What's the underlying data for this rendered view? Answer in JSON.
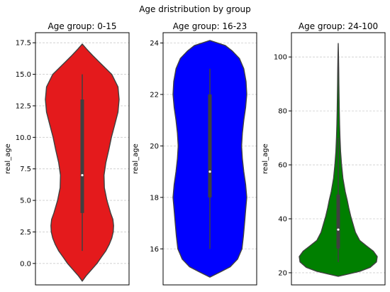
{
  "suptitle": "Age dristribution by group",
  "colors": {
    "grid": "#cccccc",
    "edge": "#3f3f3f",
    "box": "#3f3f3f",
    "median": "#ffffff"
  },
  "chart_data": [
    {
      "type": "violin",
      "title": "Age group: 0-15",
      "xlabel": "",
      "ylabel": "real_age",
      "ylim": [
        -1.7,
        18.3
      ],
      "yticks": [
        0.0,
        2.5,
        5.0,
        7.5,
        10.0,
        12.5,
        15.0,
        17.5
      ],
      "ytick_labels": [
        "0.0",
        "2.5",
        "5.0",
        "7.5",
        "10.0",
        "12.5",
        "15.0",
        "17.5"
      ],
      "grid": true,
      "color": "#e41a1c",
      "box": {
        "min": 1,
        "q1": 4,
        "median": 7,
        "q3": 13,
        "max": 15
      },
      "density": [
        [
          -1.4,
          0.0
        ],
        [
          -1.0,
          0.1
        ],
        [
          -0.5,
          0.25
        ],
        [
          0.0,
          0.4
        ],
        [
          0.5,
          0.52
        ],
        [
          1.0,
          0.64
        ],
        [
          1.5,
          0.73
        ],
        [
          2.0,
          0.8
        ],
        [
          2.5,
          0.84
        ],
        [
          3.0,
          0.85
        ],
        [
          3.5,
          0.83
        ],
        [
          4.0,
          0.77
        ],
        [
          5.0,
          0.67
        ],
        [
          6.0,
          0.6
        ],
        [
          7.0,
          0.59
        ],
        [
          8.0,
          0.64
        ],
        [
          9.0,
          0.72
        ],
        [
          10.0,
          0.79
        ],
        [
          11.0,
          0.88
        ],
        [
          12.0,
          0.97
        ],
        [
          13.0,
          1.0
        ],
        [
          14.0,
          0.97
        ],
        [
          15.0,
          0.8
        ],
        [
          16.0,
          0.45
        ],
        [
          16.5,
          0.28
        ],
        [
          17.0,
          0.12
        ],
        [
          17.4,
          0.0
        ]
      ]
    },
    {
      "type": "violin",
      "title": "Age group: 16-23",
      "xlabel": "",
      "ylabel": "real_age",
      "ylim": [
        14.6,
        24.4
      ],
      "yticks": [
        16,
        18,
        20,
        22,
        24
      ],
      "ytick_labels": [
        "16",
        "18",
        "20",
        "22",
        "24"
      ],
      "grid": true,
      "color": "#0000ff",
      "box": {
        "min": 16,
        "q1": 18,
        "median": 19,
        "q3": 22,
        "max": 23
      },
      "density": [
        [
          14.9,
          0.0
        ],
        [
          15.1,
          0.28
        ],
        [
          15.3,
          0.55
        ],
        [
          15.6,
          0.75
        ],
        [
          16.0,
          0.87
        ],
        [
          16.5,
          0.91
        ],
        [
          17.0,
          0.94
        ],
        [
          17.5,
          0.97
        ],
        [
          18.0,
          1.0
        ],
        [
          18.5,
          0.97
        ],
        [
          19.0,
          0.92
        ],
        [
          19.5,
          0.88
        ],
        [
          20.0,
          0.86
        ],
        [
          20.5,
          0.88
        ],
        [
          21.0,
          0.92
        ],
        [
          21.5,
          0.97
        ],
        [
          22.0,
          1.0
        ],
        [
          22.5,
          0.98
        ],
        [
          23.0,
          0.92
        ],
        [
          23.4,
          0.8
        ],
        [
          23.7,
          0.6
        ],
        [
          23.9,
          0.42
        ],
        [
          24.1,
          0.0
        ]
      ]
    },
    {
      "type": "violin",
      "title": "Age group: 24-100",
      "xlabel": "",
      "ylabel": "real_age",
      "ylim": [
        15.5,
        109
      ],
      "yticks": [
        20,
        40,
        60,
        80,
        100
      ],
      "ytick_labels": [
        "20",
        "40",
        "60",
        "80",
        "100"
      ],
      "grid": true,
      "color": "#007f00",
      "box": {
        "min": 24,
        "q1": 29,
        "median": 36,
        "q3": 49,
        "max": 70
      },
      "density": [
        [
          18.7,
          0.0
        ],
        [
          19.5,
          0.25
        ],
        [
          20.5,
          0.55
        ],
        [
          22,
          0.82
        ],
        [
          24,
          0.98
        ],
        [
          26,
          1.0
        ],
        [
          28,
          0.9
        ],
        [
          30,
          0.72
        ],
        [
          32,
          0.55
        ],
        [
          35,
          0.44
        ],
        [
          38,
          0.38
        ],
        [
          41,
          0.32
        ],
        [
          44,
          0.27
        ],
        [
          47,
          0.23
        ],
        [
          50,
          0.18
        ],
        [
          55,
          0.12
        ],
        [
          60,
          0.085
        ],
        [
          65,
          0.06
        ],
        [
          70,
          0.045
        ],
        [
          75,
          0.035
        ],
        [
          80,
          0.028
        ],
        [
          85,
          0.022
        ],
        [
          90,
          0.017
        ],
        [
          95,
          0.013
        ],
        [
          100,
          0.008
        ],
        [
          105,
          0.0
        ]
      ]
    }
  ]
}
